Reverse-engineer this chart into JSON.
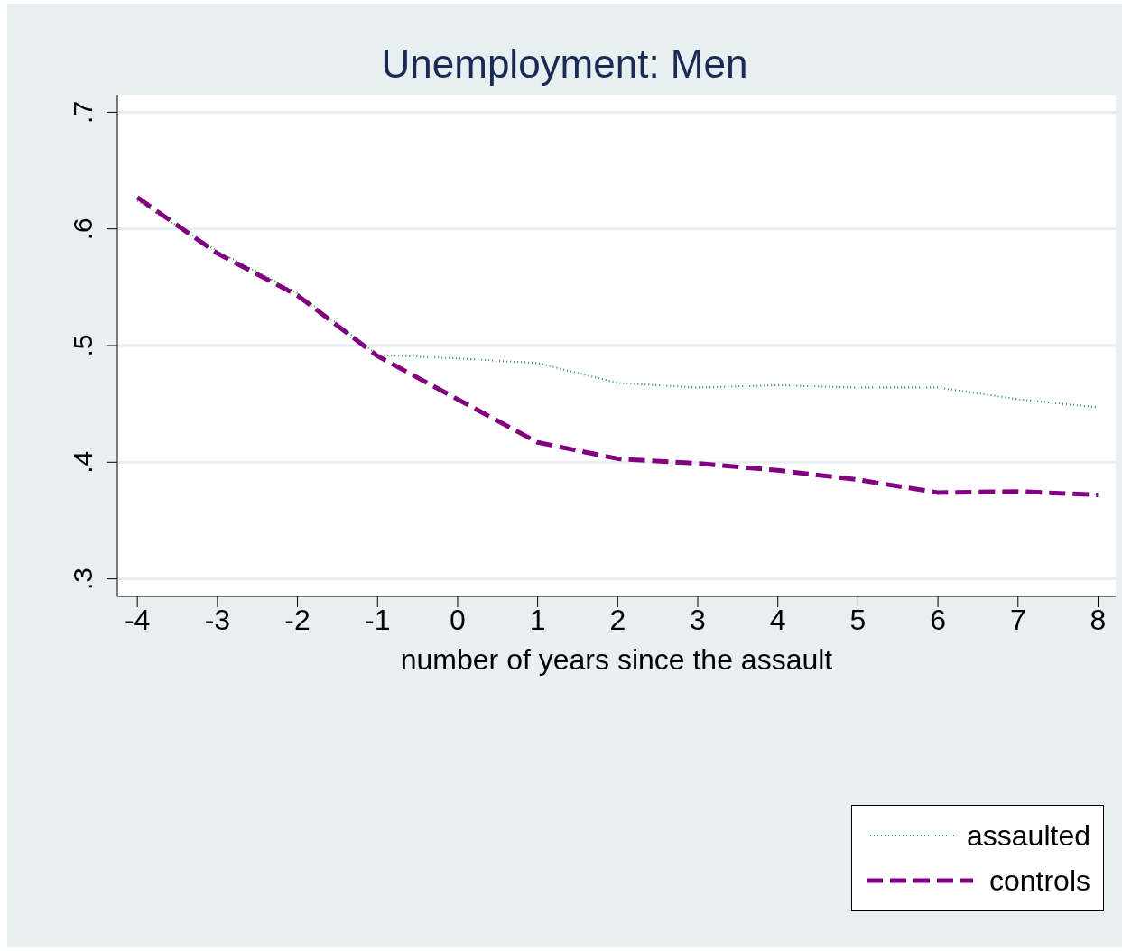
{
  "chart_data": {
    "type": "line",
    "title": "Unemployment: Men",
    "xlabel": "number of years since the assault",
    "x": [
      -4,
      -3,
      -2,
      -1,
      0,
      1,
      2,
      3,
      4,
      5,
      6,
      7,
      8
    ],
    "series": [
      {
        "name": "assaulted",
        "color": "#1e9a2a",
        "line_style": "dotted",
        "values": [
          0.624,
          0.581,
          0.545,
          0.492,
          0.489,
          0.485,
          0.468,
          0.464,
          0.466,
          0.464,
          0.464,
          0.454,
          0.447
        ]
      },
      {
        "name": "controls",
        "color": "#800080",
        "line_style": "dashed",
        "values": [
          0.627,
          0.579,
          0.543,
          0.491,
          0.454,
          0.417,
          0.403,
          0.399,
          0.393,
          0.385,
          0.374,
          0.375,
          0.372
        ]
      }
    ],
    "xlim": [
      -4.25,
      8.22
    ],
    "xticks": [
      -4,
      -3,
      -2,
      -1,
      0,
      1,
      2,
      3,
      4,
      5,
      6,
      7,
      8
    ],
    "ylim": [
      0.285,
      0.715
    ],
    "yticks": [
      {
        "value": 0.3,
        "label": ".3"
      },
      {
        "value": 0.4,
        "label": ".4"
      },
      {
        "value": 0.5,
        "label": ".5"
      },
      {
        "value": 0.6,
        "label": ".6"
      },
      {
        "value": 0.7,
        "label": ".7"
      }
    ],
    "grid": "y",
    "legend": "bottom right"
  }
}
